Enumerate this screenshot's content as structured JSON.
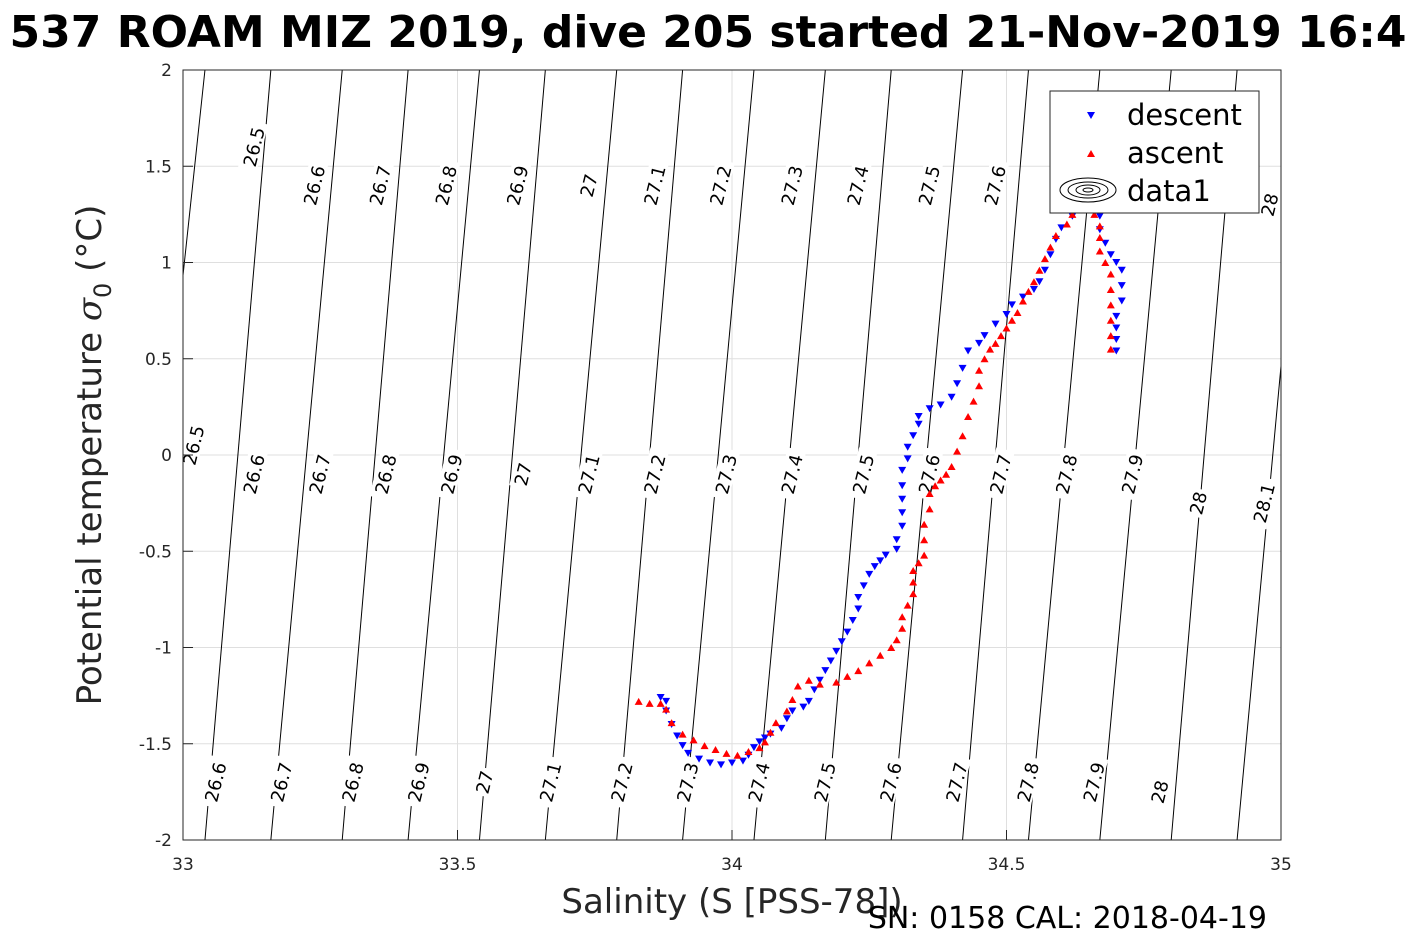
{
  "chart_data": {
    "type": "scatter",
    "title": "537 ROAM MIZ 2019, dive 205 started 21-Nov-2019 16:4",
    "xlabel": "Salinity (S [PSS-78])",
    "ylabel": "Potential temperature σ₀ (°C)",
    "ylabel_main": "Potential temperature ",
    "ylabel_sym": "σ",
    "ylabel_sub": "0",
    "ylabel_unit": " (°C)",
    "xlim": [
      33,
      35
    ],
    "ylim": [
      -2,
      2
    ],
    "xticks": [
      33,
      33.5,
      34,
      34.5,
      35
    ],
    "xtick_labels": [
      "33",
      "33.5",
      "34",
      "34.5",
      "35"
    ],
    "yticks": [
      -2,
      -1.5,
      -1,
      -0.5,
      0,
      0.5,
      1,
      1.5,
      2
    ],
    "ytick_labels": [
      "-2",
      "-1.5",
      "-1",
      "-0.5",
      "0",
      "0.5",
      "1",
      "1.5",
      "2"
    ],
    "grid": true,
    "legend_position": "top-right",
    "footer": "SN: 0158  CAL: 2018-04-19",
    "colors": {
      "descent": "#0000ff",
      "ascent": "#ff0000",
      "contour": "#000000",
      "grid": "#dfdfdf"
    },
    "density_contours": {
      "levels": [
        26.5,
        26.6,
        26.7,
        26.8,
        26.9,
        27,
        27.1,
        27.2,
        27.3,
        27.4,
        27.5,
        27.6,
        27.7,
        27.8,
        27.9,
        28,
        28.1
      ],
      "salinity_at_minus2": [
        32.89,
        33.04,
        33.16,
        33.29,
        33.41,
        33.54,
        33.66,
        33.79,
        33.91,
        34.04,
        34.17,
        34.29,
        34.42,
        34.54,
        34.67,
        34.8,
        34.92
      ],
      "salinity_at_plus2": [
        33.04,
        33.16,
        33.29,
        33.41,
        33.54,
        33.66,
        33.79,
        33.91,
        34.04,
        34.17,
        34.29,
        34.42,
        34.54,
        34.67,
        34.8,
        34.92,
        35.05
      ],
      "labels": [
        {
          "text": "26.5",
          "s": 33.13,
          "t": 1.6
        },
        {
          "text": "26.6",
          "s": 33.24,
          "t": 1.4
        },
        {
          "text": "26.7",
          "s": 33.36,
          "t": 1.4
        },
        {
          "text": "26.8",
          "s": 33.48,
          "t": 1.4
        },
        {
          "text": "26.9",
          "s": 33.61,
          "t": 1.4
        },
        {
          "text": "27",
          "s": 33.74,
          "t": 1.4
        },
        {
          "text": "27.1",
          "s": 33.86,
          "t": 1.4
        },
        {
          "text": "27.2",
          "s": 33.98,
          "t": 1.4
        },
        {
          "text": "27.3",
          "s": 34.11,
          "t": 1.4
        },
        {
          "text": "27.4",
          "s": 34.23,
          "t": 1.4
        },
        {
          "text": "27.5",
          "s": 34.36,
          "t": 1.4
        },
        {
          "text": "27.6",
          "s": 34.48,
          "t": 1.4
        },
        {
          "text": "28",
          "s": 34.98,
          "t": 1.3
        },
        {
          "text": "26.5",
          "s": 33.02,
          "t": 0.05
        },
        {
          "text": "26.6",
          "s": 33.13,
          "t": -0.1
        },
        {
          "text": "26.7",
          "s": 33.25,
          "t": -0.1
        },
        {
          "text": "26.8",
          "s": 33.37,
          "t": -0.1
        },
        {
          "text": "26.9",
          "s": 33.49,
          "t": -0.1
        },
        {
          "text": "27",
          "s": 33.62,
          "t": -0.1
        },
        {
          "text": "27.1",
          "s": 33.74,
          "t": -0.1
        },
        {
          "text": "27.2",
          "s": 33.86,
          "t": -0.1
        },
        {
          "text": "27.3",
          "s": 33.99,
          "t": -0.1
        },
        {
          "text": "27.4",
          "s": 34.11,
          "t": -0.1
        },
        {
          "text": "27.5",
          "s": 34.24,
          "t": -0.1
        },
        {
          "text": "27.6",
          "s": 34.36,
          "t": -0.1
        },
        {
          "text": "27.7",
          "s": 34.49,
          "t": -0.1
        },
        {
          "text": "27.8",
          "s": 34.61,
          "t": -0.1
        },
        {
          "text": "27.9",
          "s": 34.73,
          "t": -0.1
        },
        {
          "text": "28",
          "s": 34.85,
          "t": -0.25
        },
        {
          "text": "28.1",
          "s": 34.97,
          "t": -0.25
        },
        {
          "text": "26.6",
          "s": 33.06,
          "t": -1.7
        },
        {
          "text": "26.7",
          "s": 33.18,
          "t": -1.7
        },
        {
          "text": "26.8",
          "s": 33.31,
          "t": -1.7
        },
        {
          "text": "26.9",
          "s": 33.43,
          "t": -1.7
        },
        {
          "text": "27",
          "s": 33.55,
          "t": -1.7
        },
        {
          "text": "27.1",
          "s": 33.67,
          "t": -1.7
        },
        {
          "text": "27.2",
          "s": 33.8,
          "t": -1.7
        },
        {
          "text": "27.3",
          "s": 33.92,
          "t": -1.7
        },
        {
          "text": "27.4",
          "s": 34.05,
          "t": -1.7
        },
        {
          "text": "27.5",
          "s": 34.17,
          "t": -1.7
        },
        {
          "text": "27.6",
          "s": 34.29,
          "t": -1.7
        },
        {
          "text": "27.7",
          "s": 34.41,
          "t": -1.7
        },
        {
          "text": "27.8",
          "s": 34.54,
          "t": -1.7
        },
        {
          "text": "27.9",
          "s": 34.66,
          "t": -1.7
        },
        {
          "text": "28",
          "s": 34.78,
          "t": -1.75
        }
      ]
    },
    "series": [
      {
        "name": "descent",
        "marker": "triangle-down",
        "points": [
          [
            34.7,
            0.54
          ],
          [
            34.7,
            0.6
          ],
          [
            34.7,
            0.66
          ],
          [
            34.7,
            0.72
          ],
          [
            34.71,
            0.8
          ],
          [
            34.71,
            0.88
          ],
          [
            34.71,
            0.96
          ],
          [
            34.7,
            1.0
          ],
          [
            34.69,
            1.04
          ],
          [
            34.68,
            1.1
          ],
          [
            34.67,
            1.17
          ],
          [
            34.67,
            1.24
          ],
          [
            34.66,
            1.27
          ],
          [
            34.64,
            1.28
          ],
          [
            34.62,
            1.24
          ],
          [
            34.6,
            1.18
          ],
          [
            34.59,
            1.12
          ],
          [
            34.58,
            1.04
          ],
          [
            34.57,
            0.96
          ],
          [
            34.56,
            0.9
          ],
          [
            34.55,
            0.86
          ],
          [
            34.53,
            0.82
          ],
          [
            34.51,
            0.78
          ],
          [
            34.5,
            0.73
          ],
          [
            34.48,
            0.68
          ],
          [
            34.46,
            0.62
          ],
          [
            34.45,
            0.58
          ],
          [
            34.43,
            0.54
          ],
          [
            34.42,
            0.45
          ],
          [
            34.41,
            0.37
          ],
          [
            34.4,
            0.3
          ],
          [
            34.38,
            0.26
          ],
          [
            34.36,
            0.24
          ],
          [
            34.34,
            0.2
          ],
          [
            34.34,
            0.16
          ],
          [
            34.33,
            0.1
          ],
          [
            34.32,
            0.04
          ],
          [
            34.32,
            -0.02
          ],
          [
            34.31,
            -0.08
          ],
          [
            34.31,
            -0.16
          ],
          [
            34.31,
            -0.23
          ],
          [
            34.31,
            -0.3
          ],
          [
            34.31,
            -0.37
          ],
          [
            34.3,
            -0.44
          ],
          [
            34.3,
            -0.49
          ],
          [
            34.28,
            -0.52
          ],
          [
            34.27,
            -0.55
          ],
          [
            34.26,
            -0.58
          ],
          [
            34.25,
            -0.62
          ],
          [
            34.24,
            -0.68
          ],
          [
            34.23,
            -0.74
          ],
          [
            34.23,
            -0.8
          ],
          [
            34.22,
            -0.86
          ],
          [
            34.21,
            -0.92
          ],
          [
            34.2,
            -0.97
          ],
          [
            34.19,
            -1.02
          ],
          [
            34.18,
            -1.07
          ],
          [
            34.17,
            -1.12
          ],
          [
            34.16,
            -1.17
          ],
          [
            34.15,
            -1.22
          ],
          [
            34.14,
            -1.28
          ],
          [
            34.13,
            -1.31
          ],
          [
            34.11,
            -1.33
          ],
          [
            34.1,
            -1.37
          ],
          [
            34.09,
            -1.42
          ],
          [
            34.07,
            -1.45
          ],
          [
            34.06,
            -1.47
          ],
          [
            34.05,
            -1.49
          ],
          [
            34.04,
            -1.52
          ],
          [
            34.03,
            -1.56
          ],
          [
            34.02,
            -1.59
          ],
          [
            34.0,
            -1.6
          ],
          [
            33.98,
            -1.61
          ],
          [
            33.96,
            -1.6
          ],
          [
            33.94,
            -1.58
          ],
          [
            33.92,
            -1.55
          ],
          [
            33.91,
            -1.51
          ],
          [
            33.9,
            -1.46
          ],
          [
            33.89,
            -1.4
          ],
          [
            33.88,
            -1.33
          ],
          [
            33.88,
            -1.28
          ],
          [
            33.87,
            -1.26
          ]
        ]
      },
      {
        "name": "ascent",
        "marker": "triangle-up",
        "points": [
          [
            34.69,
            0.55
          ],
          [
            34.69,
            0.62
          ],
          [
            34.69,
            0.7
          ],
          [
            34.69,
            0.78
          ],
          [
            34.69,
            0.86
          ],
          [
            34.69,
            0.94
          ],
          [
            34.68,
            1.0
          ],
          [
            34.67,
            1.06
          ],
          [
            34.67,
            1.13
          ],
          [
            34.67,
            1.19
          ],
          [
            34.66,
            1.25
          ],
          [
            34.65,
            1.3
          ],
          [
            34.63,
            1.29
          ],
          [
            34.62,
            1.25
          ],
          [
            34.61,
            1.2
          ],
          [
            34.59,
            1.14
          ],
          [
            34.58,
            1.08
          ],
          [
            34.57,
            1.02
          ],
          [
            34.56,
            0.96
          ],
          [
            34.55,
            0.9
          ],
          [
            34.54,
            0.85
          ],
          [
            34.53,
            0.8
          ],
          [
            34.52,
            0.74
          ],
          [
            34.51,
            0.7
          ],
          [
            34.5,
            0.66
          ],
          [
            34.49,
            0.62
          ],
          [
            34.48,
            0.58
          ],
          [
            34.47,
            0.55
          ],
          [
            34.46,
            0.5
          ],
          [
            34.45,
            0.44
          ],
          [
            34.45,
            0.36
          ],
          [
            34.44,
            0.28
          ],
          [
            34.43,
            0.2
          ],
          [
            34.42,
            0.1
          ],
          [
            34.41,
            0.02
          ],
          [
            34.4,
            -0.06
          ],
          [
            34.39,
            -0.1
          ],
          [
            34.38,
            -0.13
          ],
          [
            34.37,
            -0.16
          ],
          [
            34.36,
            -0.2
          ],
          [
            34.36,
            -0.28
          ],
          [
            34.35,
            -0.36
          ],
          [
            34.35,
            -0.44
          ],
          [
            34.35,
            -0.52
          ],
          [
            34.34,
            -0.56
          ],
          [
            34.33,
            -0.6
          ],
          [
            34.33,
            -0.66
          ],
          [
            34.33,
            -0.72
          ],
          [
            34.32,
            -0.78
          ],
          [
            34.31,
            -0.84
          ],
          [
            34.31,
            -0.9
          ],
          [
            34.3,
            -0.96
          ],
          [
            34.29,
            -1.0
          ],
          [
            34.27,
            -1.04
          ],
          [
            34.25,
            -1.08
          ],
          [
            34.23,
            -1.12
          ],
          [
            34.21,
            -1.15
          ],
          [
            34.19,
            -1.18
          ],
          [
            34.16,
            -1.19
          ],
          [
            34.14,
            -1.17
          ],
          [
            34.12,
            -1.2
          ],
          [
            34.11,
            -1.27
          ],
          [
            34.1,
            -1.33
          ],
          [
            34.08,
            -1.39
          ],
          [
            34.07,
            -1.44
          ],
          [
            34.06,
            -1.49
          ],
          [
            34.05,
            -1.52
          ],
          [
            34.03,
            -1.54
          ],
          [
            34.01,
            -1.56
          ],
          [
            33.99,
            -1.55
          ],
          [
            33.97,
            -1.53
          ],
          [
            33.95,
            -1.51
          ],
          [
            33.93,
            -1.48
          ],
          [
            33.91,
            -1.45
          ],
          [
            33.89,
            -1.39
          ],
          [
            33.88,
            -1.32
          ],
          [
            33.87,
            -1.29
          ],
          [
            33.85,
            -1.29
          ],
          [
            33.83,
            -1.28
          ]
        ]
      },
      {
        "name": "data1",
        "marker": "contour-ellipse",
        "points": []
      }
    ]
  }
}
